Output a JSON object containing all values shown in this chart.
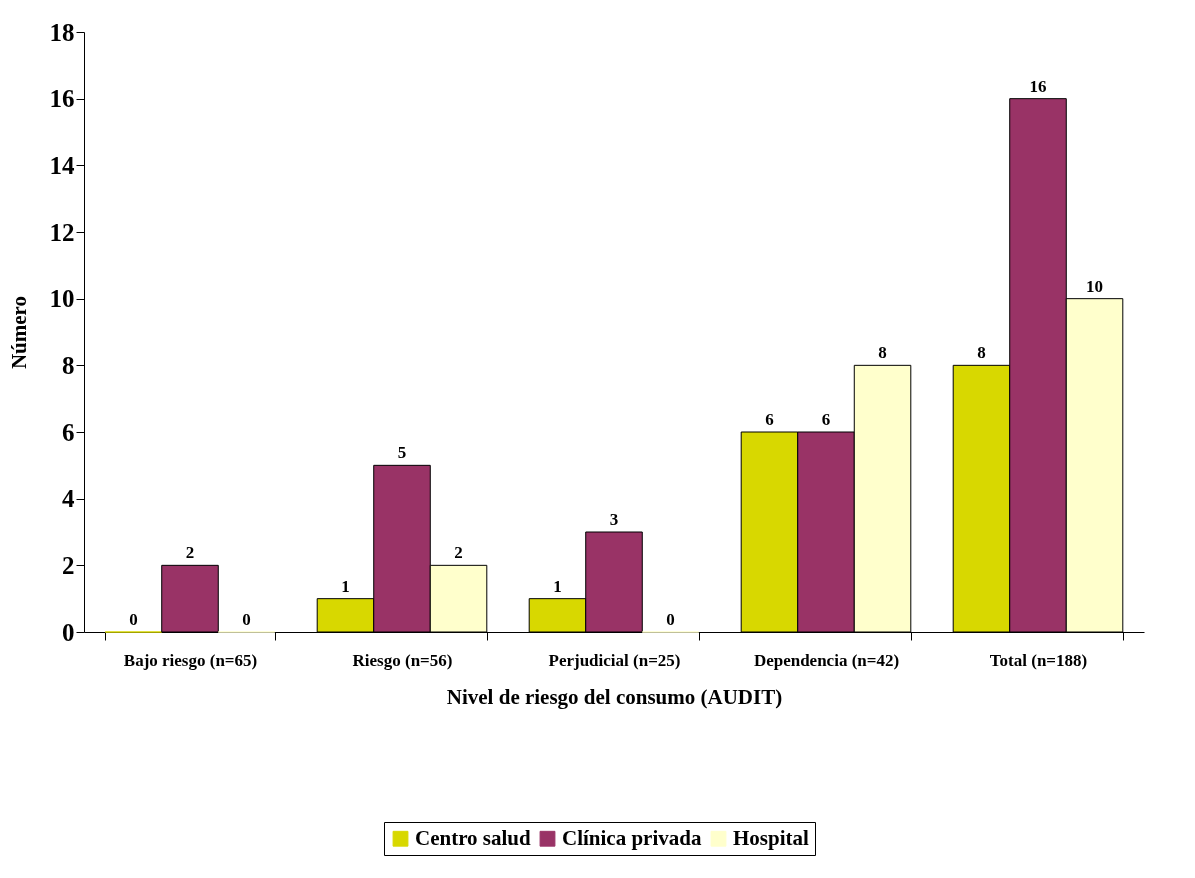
{
  "chart_data": {
    "type": "bar",
    "xlabel": "Nivel de riesgo del consumo (AUDIT)",
    "ylabel": "Número",
    "categories": [
      "Bajo riesgo (n=65)",
      "Riesgo (n=56)",
      "Perjudicial (n=25)",
      "Dependencia (n=42)",
      "Total (n=188)"
    ],
    "series": [
      {
        "name": "Centro salud",
        "color": "#d8d800",
        "values": [
          0,
          1,
          1,
          6,
          8
        ]
      },
      {
        "name": "Clínica privada",
        "color": "#993366",
        "values": [
          2,
          5,
          3,
          6,
          16
        ]
      },
      {
        "name": "Hospital",
        "color": "#ffffcc",
        "values": [
          0,
          2,
          0,
          8,
          10
        ]
      }
    ],
    "ylim": [
      0,
      18
    ],
    "yticks": [
      0,
      2,
      4,
      6,
      8,
      10,
      12,
      14,
      16,
      18
    ],
    "grid": false,
    "legend": "bottom",
    "data_labels": true
  }
}
